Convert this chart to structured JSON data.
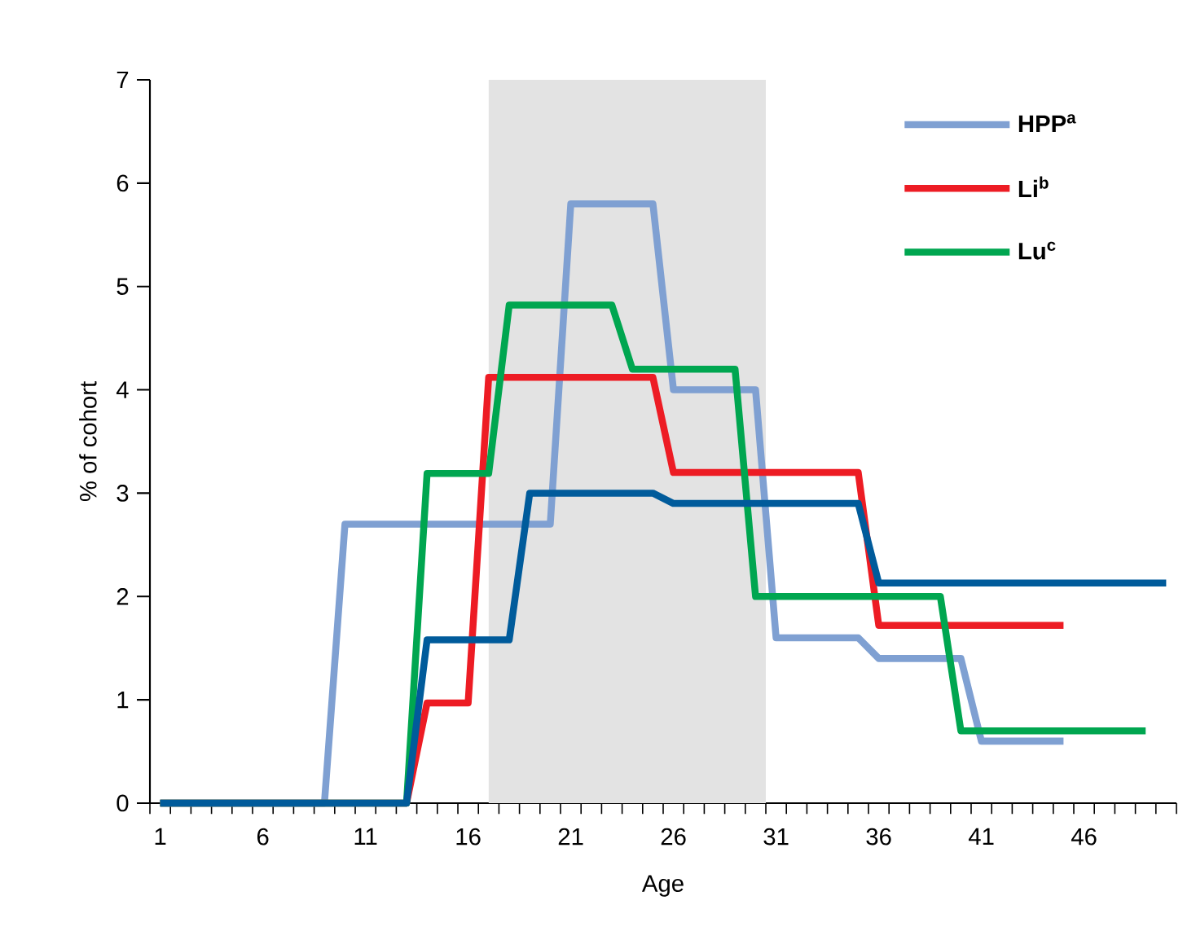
{
  "chart_data": {
    "type": "line",
    "xlabel": "Age",
    "ylabel": "% of cohort",
    "xlim": [
      0.5,
      50.5
    ],
    "ylim": [
      0,
      7
    ],
    "yticks": [
      0,
      1,
      2,
      3,
      4,
      5,
      6,
      7
    ],
    "xticks": [
      1,
      6,
      11,
      16,
      21,
      26,
      31,
      36,
      41,
      46,
      {
        "value": 0.5,
        "label": null
      },
      {
        "value": 1.5,
        "label": null
      },
      {
        "value": 2.5,
        "label": null
      },
      {
        "value": 3.5,
        "label": null
      },
      {
        "value": 4.5,
        "label": null
      },
      {
        "value": 5.5,
        "label": null
      },
      {
        "value": 6.5,
        "label": null
      },
      {
        "value": 7.5,
        "label": null
      },
      {
        "value": 8.5,
        "label": null
      },
      {
        "value": 9.5,
        "label": null
      },
      {
        "value": 10.5,
        "label": null
      },
      {
        "value": 11.5,
        "label": null
      },
      {
        "value": 12.5,
        "label": null
      },
      {
        "value": 13.5,
        "label": null
      },
      {
        "value": 14.5,
        "label": null
      },
      {
        "value": 15.5,
        "label": null
      },
      {
        "value": 16.5,
        "label": null
      },
      {
        "value": 17.5,
        "label": null
      },
      {
        "value": 18.5,
        "label": null
      },
      {
        "value": 19.5,
        "label": null
      },
      {
        "value": 20.5,
        "label": null
      },
      {
        "value": 21.5,
        "label": null
      },
      {
        "value": 22.5,
        "label": null
      },
      {
        "value": 23.5,
        "label": null
      },
      {
        "value": 24.5,
        "label": null
      },
      {
        "value": 25.5,
        "label": null
      },
      {
        "value": 26.5,
        "label": null
      },
      {
        "value": 27.5,
        "label": null
      },
      {
        "value": 28.5,
        "label": null
      },
      {
        "value": 29.5,
        "label": null
      },
      {
        "value": 30.5,
        "label": null
      },
      {
        "value": 31.5,
        "label": null
      },
      {
        "value": 32.5,
        "label": null
      },
      {
        "value": 33.5,
        "label": null
      },
      {
        "value": 34.5,
        "label": null
      },
      {
        "value": 35.5,
        "label": null
      },
      {
        "value": 36.5,
        "label": null
      },
      {
        "value": 37.5,
        "label": null
      },
      {
        "value": 38.5,
        "label": null
      },
      {
        "value": 39.5,
        "label": null
      },
      {
        "value": 40.5,
        "label": null
      },
      {
        "value": 41.5,
        "label": null
      },
      {
        "value": 42.5,
        "label": null
      },
      {
        "value": 43.5,
        "label": null
      },
      {
        "value": 44.5,
        "label": null
      },
      {
        "value": 45.5,
        "label": null
      },
      {
        "value": 46.5,
        "label": null
      },
      {
        "value": 47.5,
        "label": null
      },
      {
        "value": 48.5,
        "label": null
      },
      {
        "value": 49.5,
        "label": null
      },
      {
        "value": 50.5,
        "label": null
      }
    ],
    "bands": [
      {
        "axis": "x",
        "from": 17,
        "to": 30.5,
        "color": "#e3e3e3"
      }
    ],
    "legend": "top right",
    "series": [
      {
        "name": "HPP$^{a}$",
        "color": "#7fa0d2",
        "x": [
          1,
          9,
          10,
          20,
          21,
          25,
          26,
          30,
          31,
          35,
          36,
          40,
          41,
          45
        ],
        "values": [
          0,
          0,
          2.7,
          2.7,
          5.8,
          5.8,
          4.0,
          4.0,
          1.6,
          1.6,
          1.4,
          1.4,
          0.6,
          0.6
        ]
      },
      {
        "name": "Li$^{b}$",
        "color": "#ed1c24",
        "x": [
          1,
          13,
          14,
          16,
          17,
          25,
          26,
          35,
          36,
          45
        ],
        "values": [
          0,
          0,
          0.97,
          0.97,
          4.12,
          4.12,
          3.2,
          3.2,
          1.72,
          1.72
        ]
      },
      {
        "name": "Lu$^{c}$",
        "color": "#00a650",
        "x": [
          1,
          13,
          14,
          17,
          18,
          23,
          24,
          29,
          30,
          39,
          40,
          49
        ],
        "values": [
          0,
          0,
          3.19,
          3.19,
          4.82,
          4.82,
          4.2,
          4.2,
          2.0,
          2.0,
          0.7,
          0.7
        ]
      },
      {
        "color": "#005b9b",
        "x": [
          1,
          13,
          14,
          18,
          19,
          25,
          26,
          35,
          36,
          50
        ],
        "values": [
          0,
          0,
          1.58,
          1.58,
          3.0,
          3.0,
          2.9,
          2.9,
          2.13,
          2.13
        ]
      }
    ]
  }
}
